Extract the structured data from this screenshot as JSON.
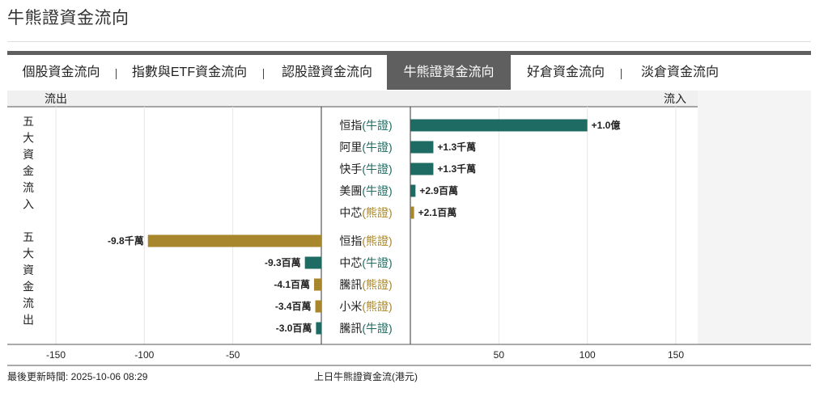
{
  "page": {
    "title": "牛熊證資金流向"
  },
  "tabs": [
    {
      "label": "個股資金流向",
      "active": false
    },
    {
      "label": "指數與ETF資金流向",
      "active": false
    },
    {
      "label": "認股證資金流向",
      "active": false
    },
    {
      "label": "牛熊證資金流向",
      "active": true
    },
    {
      "label": "好倉資金流向",
      "active": false
    },
    {
      "label": "淡倉資金流向",
      "active": false
    }
  ],
  "chart_data": {
    "type": "bar",
    "orientation": "horizontal",
    "left_header": "流出",
    "right_header": "流入",
    "groups": [
      {
        "label": "五大資金流入",
        "items": [
          {
            "name": "恒指",
            "kind": "牛證",
            "value": 100,
            "value_label": "+1.0億"
          },
          {
            "name": "阿里",
            "kind": "牛證",
            "value": 13,
            "value_label": "+1.3千萬"
          },
          {
            "name": "快手",
            "kind": "牛證",
            "value": 13,
            "value_label": "+1.3千萬"
          },
          {
            "name": "美團",
            "kind": "牛證",
            "value": 2.9,
            "value_label": "+2.9百萬"
          },
          {
            "name": "中芯",
            "kind": "熊證",
            "value": 2.1,
            "value_label": "+2.1百萬"
          }
        ]
      },
      {
        "label": "五大資金流出",
        "items": [
          {
            "name": "恒指",
            "kind": "熊證",
            "value": -98,
            "value_label": "-9.8千萬"
          },
          {
            "name": "中芯",
            "kind": "牛證",
            "value": -9.3,
            "value_label": "-9.3百萬"
          },
          {
            "name": "騰訊",
            "kind": "熊證",
            "value": -4.1,
            "value_label": "-4.1百萬"
          },
          {
            "name": "小米",
            "kind": "熊證",
            "value": -3.4,
            "value_label": "-3.4百萬"
          },
          {
            "name": "騰訊",
            "kind": "牛證",
            "value": -3.0,
            "value_label": "-3.0百萬"
          }
        ]
      }
    ],
    "xticks": [
      -150,
      -100,
      -50,
      50,
      100,
      150
    ],
    "xlim": [
      -150,
      150
    ],
    "grid": true,
    "colors": {
      "牛證": "#1d6b62",
      "熊證": "#a8862b",
      "label_牛證": "#1d6b62",
      "label_熊證": "#a8862b"
    }
  },
  "footer": {
    "updated": "最後更新時間: 2025-10-06 08:29",
    "caption": "上日牛熊證資金流(港元)"
  }
}
